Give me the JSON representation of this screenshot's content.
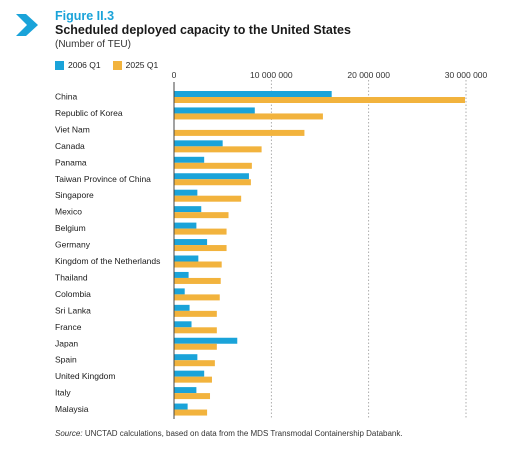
{
  "figure": {
    "number": "Figure II.3",
    "title": "Scheduled deployed capacity to the United States",
    "subtitle": "(Number of TEU)"
  },
  "source": {
    "label": "Source:",
    "text": "UNCTAD calculations, based on data from the MDS Transmodal Containership Databank."
  },
  "chart_data": {
    "type": "bar",
    "orientation": "horizontal",
    "categories": [
      "China",
      "Republic of Korea",
      "Viet Nam",
      "Canada",
      "Panama",
      "Taiwan Province of China",
      "Singapore",
      "Mexico",
      "Belgium",
      "Germany",
      "Kingdom of the Netherlands",
      "Thailand",
      "Colombia",
      "Sri Lanka",
      "France",
      "Japan",
      "Spain",
      "United Kingdom",
      "Italy",
      "Malaysia"
    ],
    "series": [
      {
        "name": "2006 Q1",
        "color": "#1aa3d9",
        "values": [
          16200000,
          8300000,
          0,
          5000000,
          3100000,
          7700000,
          2400000,
          2800000,
          2300000,
          3400000,
          2500000,
          1500000,
          1100000,
          1600000,
          1800000,
          6500000,
          2400000,
          3100000,
          2300000,
          1400000
        ]
      },
      {
        "name": "2025 Q1",
        "color": "#f2b33d",
        "values": [
          29900000,
          15300000,
          13400000,
          9000000,
          8000000,
          7900000,
          6900000,
          5600000,
          5400000,
          5400000,
          4900000,
          4800000,
          4700000,
          4400000,
          4400000,
          4400000,
          4200000,
          3900000,
          3700000,
          3400000
        ]
      }
    ],
    "xlim": [
      0,
      30000000
    ],
    "xticks": [
      0,
      10000000,
      20000000,
      30000000
    ],
    "xtick_labels": [
      "0",
      "10 000 000",
      "20 000 000",
      "30 000 000"
    ],
    "grid": "vertical-dotted",
    "legend_position": "top-left"
  }
}
